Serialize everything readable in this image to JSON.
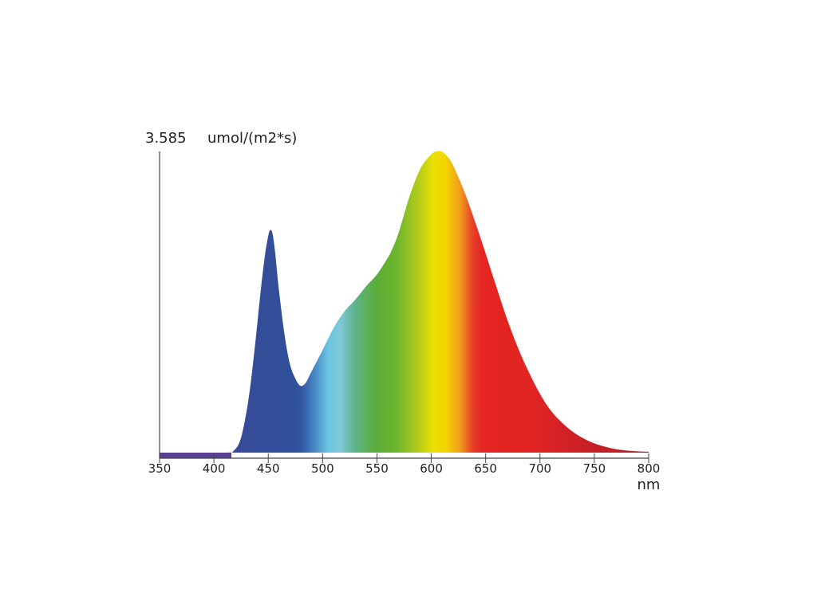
{
  "chart_data": {
    "type": "area",
    "ymax_label": "3.585",
    "ylabel": "umol/(m2*s)",
    "xlabel": "nm",
    "xlim": [
      350,
      800
    ],
    "ylim": [
      0,
      3.585
    ],
    "x_ticks": [
      350,
      400,
      450,
      500,
      550,
      600,
      650,
      700,
      750,
      800
    ],
    "x_tick_labels": [
      "350",
      "400",
      "450",
      "500",
      "550",
      "600",
      "650",
      "700",
      "750",
      "800"
    ],
    "grid": false,
    "series": [
      {
        "x": [
          350,
          410,
          418,
          425,
          432,
          438,
          443,
          447,
          450,
          452,
          454,
          456,
          460,
          465,
          470,
          475,
          479,
          482,
          485,
          488,
          492,
          496,
          500,
          510,
          520,
          530,
          540,
          550,
          560,
          564,
          570,
          580,
          590,
          600,
          605,
          610,
          615,
          620,
          630,
          640,
          650,
          660,
          670,
          680,
          690,
          700,
          710,
          720,
          730,
          740,
          750,
          760,
          770,
          780,
          790,
          800
        ],
        "values": [
          0.0,
          0.0,
          0.02,
          0.18,
          0.65,
          1.3,
          1.92,
          2.35,
          2.58,
          2.65,
          2.6,
          2.42,
          1.92,
          1.4,
          1.05,
          0.88,
          0.8,
          0.8,
          0.84,
          0.92,
          1.02,
          1.12,
          1.22,
          1.48,
          1.68,
          1.82,
          1.98,
          2.12,
          2.32,
          2.42,
          2.62,
          3.05,
          3.38,
          3.55,
          3.585,
          3.58,
          3.52,
          3.42,
          3.12,
          2.76,
          2.37,
          1.97,
          1.58,
          1.24,
          0.95,
          0.7,
          0.5,
          0.36,
          0.25,
          0.17,
          0.11,
          0.07,
          0.04,
          0.025,
          0.015,
          0.01
        ]
      }
    ],
    "colors": {
      "uv_band": "#5a3f95",
      "axis": "#444444"
    }
  }
}
